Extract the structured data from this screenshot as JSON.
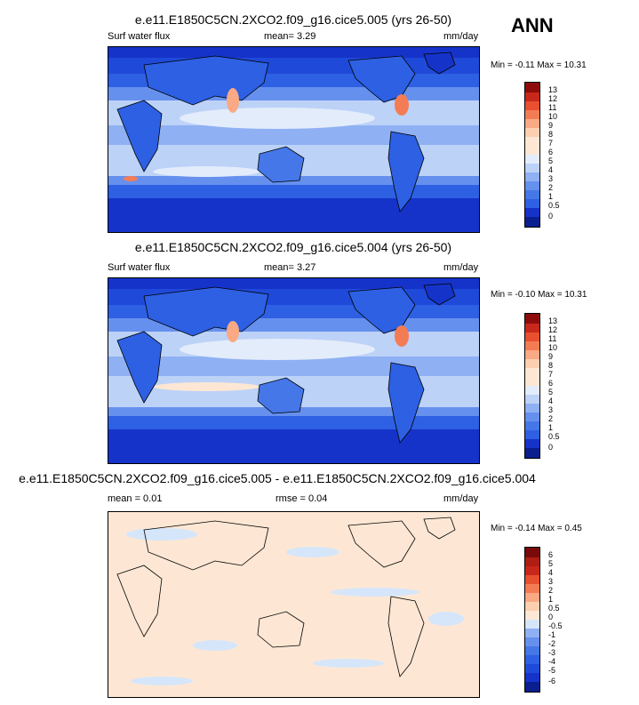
{
  "season": "ANN",
  "panels": [
    {
      "title": "e.e11.E1850C5CN.2XCO2.f09_g16.cice5.005 (yrs 26-50)",
      "variable": "Surf water flux",
      "stat1": "mean=  3.29",
      "units": "mm/day",
      "minmax": "Min =  -0.11 Max =  10.31",
      "scale": "abs",
      "colorbar_labels": [
        "13",
        "12",
        "11",
        "10",
        "9",
        "8",
        "7",
        "6",
        "5",
        "4",
        "3",
        "2",
        "1",
        "0.5",
        "0"
      ]
    },
    {
      "title": "e.e11.E1850C5CN.2XCO2.f09_g16.cice5.004 (yrs 26-50)",
      "variable": "Surf water flux",
      "stat1": "mean=  3.27",
      "units": "mm/day",
      "minmax": "Min =  -0.10 Max =  10.31",
      "scale": "abs",
      "colorbar_labels": [
        "13",
        "12",
        "11",
        "10",
        "9",
        "8",
        "7",
        "6",
        "5",
        "4",
        "3",
        "2",
        "1",
        "0.5",
        "0"
      ]
    },
    {
      "title": "e.e11.E1850C5CN.2XCO2.f09_g16.cice5.005 - e.e11.E1850C5CN.2XCO2.f09_g16.cice5.004",
      "variable": "",
      "stat1": "mean =  0.01",
      "stat2": "rmse =  0.04",
      "units": "mm/day",
      "minmax": "Min =  -0.14 Max =  0.45",
      "scale": "diff",
      "colorbar_labels": [
        "6",
        "5",
        "4",
        "3",
        "2",
        "1",
        "0.5",
        "0",
        "-0.5",
        "-1",
        "-2",
        "-3",
        "-4",
        "-5",
        "-6"
      ]
    }
  ],
  "colors": {
    "abs_scale": [
      "#0a1f8f",
      "#1633c9",
      "#1f4ad9",
      "#2d60e3",
      "#4577e8",
      "#6690ee",
      "#8fb0f3",
      "#bcd2f7",
      "#e3ecfb",
      "#fde7d4",
      "#fbcfb0",
      "#f9a983",
      "#f47c55",
      "#e8502f",
      "#c8281a",
      "#8e0b0b"
    ],
    "diff_scale": [
      "#0a1f8f",
      "#1633c9",
      "#1f4ad9",
      "#2d60e3",
      "#4577e8",
      "#6690ee",
      "#8fb0f3",
      "#d6e6fa",
      "#fde7d4",
      "#fbcfb0",
      "#f9a983",
      "#f47c55",
      "#e8502f",
      "#c8281a",
      "#b01d12",
      "#7a0a0a"
    ]
  }
}
